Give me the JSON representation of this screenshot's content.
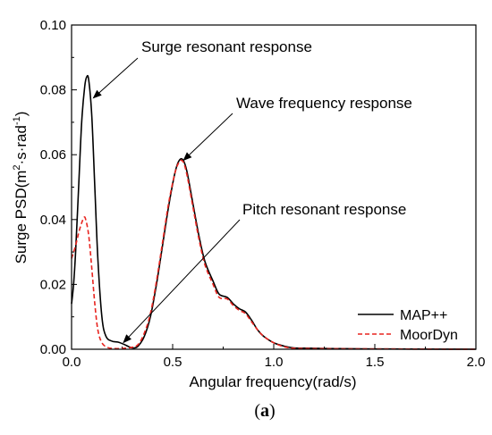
{
  "chart_data": {
    "type": "line",
    "xlabel": "Angular frequency(rad/s)",
    "ylabel_main": "Surge PSD(m",
    "ylabel_sup1": "2",
    "ylabel_mid": "·s·rad",
    "ylabel_sup2": "-1",
    "ylabel_end": ")",
    "xlim": [
      0.0,
      2.0
    ],
    "ylim": [
      0.0,
      0.1
    ],
    "xticks": [
      "0.0",
      "0.5",
      "1.0",
      "1.5",
      "2.0"
    ],
    "yticks": [
      "0.00",
      "0.02",
      "0.04",
      "0.06",
      "0.08",
      "0.10"
    ],
    "legend_position": "bottom-right",
    "series": [
      {
        "name": "MAP++",
        "color": "#000000",
        "dash": "solid",
        "points": [
          [
            0.0,
            0.014
          ],
          [
            0.01,
            0.02
          ],
          [
            0.02,
            0.03
          ],
          [
            0.035,
            0.05
          ],
          [
            0.05,
            0.07
          ],
          [
            0.065,
            0.081
          ],
          [
            0.075,
            0.084
          ],
          [
            0.085,
            0.083
          ],
          [
            0.1,
            0.072
          ],
          [
            0.115,
            0.05
          ],
          [
            0.13,
            0.028
          ],
          [
            0.15,
            0.01
          ],
          [
            0.17,
            0.004
          ],
          [
            0.2,
            0.0025
          ],
          [
            0.23,
            0.0022
          ],
          [
            0.26,
            0.0015
          ],
          [
            0.29,
            0.0006
          ],
          [
            0.31,
            0.0004
          ],
          [
            0.33,
            0.001
          ],
          [
            0.36,
            0.004
          ],
          [
            0.39,
            0.01
          ],
          [
            0.42,
            0.02
          ],
          [
            0.45,
            0.032
          ],
          [
            0.48,
            0.044
          ],
          [
            0.51,
            0.054
          ],
          [
            0.53,
            0.058
          ],
          [
            0.55,
            0.0585
          ],
          [
            0.57,
            0.055
          ],
          [
            0.6,
            0.045
          ],
          [
            0.63,
            0.035
          ],
          [
            0.66,
            0.027
          ],
          [
            0.7,
            0.021
          ],
          [
            0.73,
            0.017
          ],
          [
            0.77,
            0.016
          ],
          [
            0.8,
            0.014
          ],
          [
            0.83,
            0.0125
          ],
          [
            0.86,
            0.0115
          ],
          [
            0.89,
            0.009
          ],
          [
            0.92,
            0.006
          ],
          [
            0.95,
            0.004
          ],
          [
            1.0,
            0.002
          ],
          [
            1.05,
            0.001
          ],
          [
            1.1,
            0.0004
          ],
          [
            1.2,
            0.0003
          ],
          [
            1.3,
            0.0002
          ],
          [
            1.5,
            0.0001
          ],
          [
            1.7,
            5e-05
          ],
          [
            2.0,
            0.0
          ]
        ]
      },
      {
        "name": "MoorDyn",
        "color": "#e8241f",
        "dash": "dashed",
        "points": [
          [
            0.0,
            0.028
          ],
          [
            0.02,
            0.032
          ],
          [
            0.04,
            0.037
          ],
          [
            0.06,
            0.0405
          ],
          [
            0.07,
            0.04
          ],
          [
            0.085,
            0.035
          ],
          [
            0.1,
            0.025
          ],
          [
            0.115,
            0.014
          ],
          [
            0.13,
            0.006
          ],
          [
            0.15,
            0.002
          ],
          [
            0.18,
            0.0005
          ],
          [
            0.22,
            0.0002
          ],
          [
            0.26,
            0.0003
          ],
          [
            0.3,
            0.0006
          ],
          [
            0.33,
            0.0015
          ],
          [
            0.36,
            0.005
          ],
          [
            0.39,
            0.011
          ],
          [
            0.42,
            0.021
          ],
          [
            0.45,
            0.033
          ],
          [
            0.48,
            0.045
          ],
          [
            0.51,
            0.054
          ],
          [
            0.53,
            0.0575
          ],
          [
            0.55,
            0.058
          ],
          [
            0.57,
            0.054
          ],
          [
            0.6,
            0.044
          ],
          [
            0.63,
            0.034
          ],
          [
            0.66,
            0.026
          ],
          [
            0.7,
            0.02
          ],
          [
            0.73,
            0.016
          ],
          [
            0.77,
            0.0155
          ],
          [
            0.8,
            0.0135
          ],
          [
            0.83,
            0.012
          ],
          [
            0.86,
            0.011
          ],
          [
            0.89,
            0.0085
          ],
          [
            0.92,
            0.006
          ],
          [
            0.95,
            0.004
          ],
          [
            1.0,
            0.002
          ],
          [
            1.05,
            0.0008
          ],
          [
            1.1,
            0.0003
          ],
          [
            1.2,
            0.0002
          ],
          [
            1.5,
            0.0001
          ],
          [
            2.0,
            0.0
          ]
        ]
      }
    ],
    "annotations": [
      {
        "text": "Surge resonant response",
        "target": [
          0.09,
          0.083
        ]
      },
      {
        "text": "Wave frequency response",
        "target": [
          0.545,
          0.058
        ]
      },
      {
        "text": "Pitch resonant response",
        "target": [
          0.23,
          0.0015
        ]
      }
    ]
  },
  "caption": {
    "open": "(",
    "letter": "a",
    "close": ")"
  }
}
